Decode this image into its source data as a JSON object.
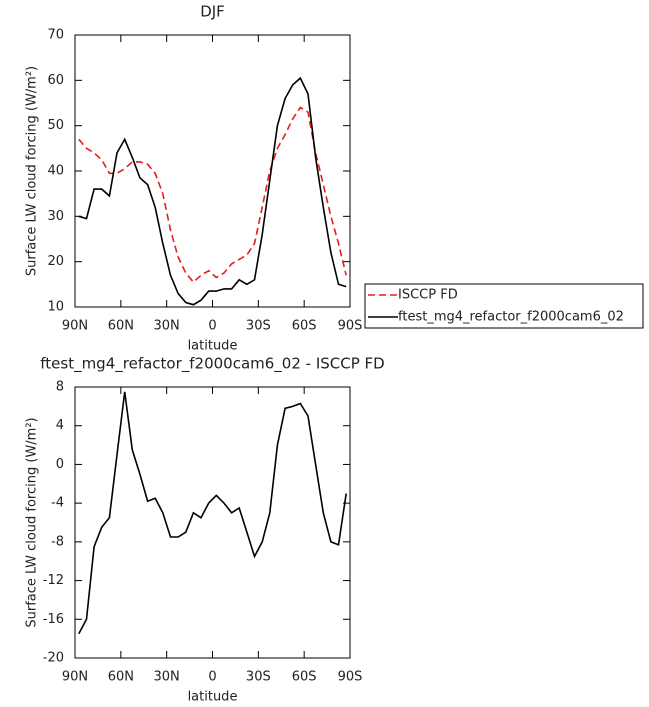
{
  "chart_data": [
    {
      "type": "line",
      "title": "DJF",
      "xlabel": "latitude",
      "ylabel": "Surface LW cloud forcing (W/m²)",
      "x": [
        87.5,
        82.5,
        77.5,
        72.5,
        67.5,
        62.5,
        57.5,
        52.5,
        47.5,
        42.5,
        37.5,
        32.5,
        27.5,
        22.5,
        17.5,
        12.5,
        7.5,
        2.5,
        -2.5,
        -7.5,
        -12.5,
        -17.5,
        -22.5,
        -27.5,
        -32.5,
        -37.5,
        -42.5,
        -47.5,
        -52.5,
        -57.5,
        -62.5,
        -67.5,
        -72.5,
        -77.5,
        -82.5,
        -87.5
      ],
      "series": [
        {
          "name": "ISCCP FD",
          "color": "#e0201b",
          "line_style": "dashed",
          "values": [
            47,
            45,
            44,
            42.5,
            39.5,
            39.5,
            40.5,
            42,
            42,
            41.5,
            39.5,
            35,
            27,
            21,
            17.5,
            15.5,
            17,
            18,
            16.5,
            17.5,
            19.5,
            20.5,
            21.5,
            24,
            32,
            40,
            45,
            48,
            51.5,
            54,
            53,
            44,
            37,
            30,
            24,
            17
          ]
        },
        {
          "name": "ftest_mg4_refactor_f2000cam6_02",
          "color": "#000000",
          "line_style": "solid",
          "values": [
            30,
            29.5,
            36,
            36,
            34.5,
            44,
            47,
            43,
            38.5,
            37,
            32,
            24,
            17,
            13,
            11,
            10.5,
            11.5,
            13.5,
            13.5,
            14,
            14,
            16,
            15,
            16,
            26,
            38,
            50,
            56,
            59,
            60.5,
            57,
            43,
            32,
            22,
            15,
            14.5
          ]
        }
      ],
      "xlim": [
        90,
        -90
      ],
      "xticks": [
        {
          "value": 90,
          "label": "90N"
        },
        {
          "value": 60,
          "label": "60N"
        },
        {
          "value": 30,
          "label": "30N"
        },
        {
          "value": 0,
          "label": "0"
        },
        {
          "value": -30,
          "label": "30S"
        },
        {
          "value": -60,
          "label": "60S"
        },
        {
          "value": -90,
          "label": "90S"
        }
      ],
      "ylim": [
        10,
        70
      ],
      "yticks": [
        10,
        20,
        30,
        40,
        50,
        60,
        70
      ],
      "legend": "right"
    },
    {
      "type": "line",
      "title": "ftest_mg4_refactor_f2000cam6_02 - ISCCP FD",
      "xlabel": "latitude",
      "ylabel": "Surface LW cloud forcing (W/m²)",
      "x": [
        87.5,
        82.5,
        77.5,
        72.5,
        67.5,
        62.5,
        57.5,
        52.5,
        47.5,
        42.5,
        37.5,
        32.5,
        27.5,
        22.5,
        17.5,
        12.5,
        7.5,
        2.5,
        -2.5,
        -7.5,
        -12.5,
        -17.5,
        -22.5,
        -27.5,
        -32.5,
        -37.5,
        -42.5,
        -47.5,
        -52.5,
        -57.5,
        -62.5,
        -67.5,
        -72.5,
        -77.5,
        -82.5,
        -87.5
      ],
      "series": [
        {
          "color": "#000000",
          "line_style": "solid",
          "values": [
            -17.5,
            -16,
            -8.5,
            -6.5,
            -5.5,
            1,
            7.5,
            1.5,
            -1,
            -3.8,
            -3.5,
            -5,
            -7.5,
            -7.5,
            -7,
            -5,
            -5.5,
            -4,
            -3.2,
            -4,
            -5,
            -4.5,
            -7,
            -9.5,
            -8,
            -5,
            2,
            5.8,
            6,
            6.3,
            5,
            0,
            -5,
            -8,
            -8.3,
            -3
          ]
        }
      ],
      "xlim": [
        90,
        -90
      ],
      "xticks": [
        {
          "value": 90,
          "label": "90N"
        },
        {
          "value": 60,
          "label": "60N"
        },
        {
          "value": 30,
          "label": "30N"
        },
        {
          "value": 0,
          "label": "0"
        },
        {
          "value": -30,
          "label": "30S"
        },
        {
          "value": -60,
          "label": "60S"
        },
        {
          "value": -90,
          "label": "90S"
        }
      ],
      "ylim": [
        -20,
        8
      ],
      "yticks": [
        -20,
        -16,
        -12,
        -8,
        -4,
        0,
        4,
        8
      ]
    }
  ]
}
